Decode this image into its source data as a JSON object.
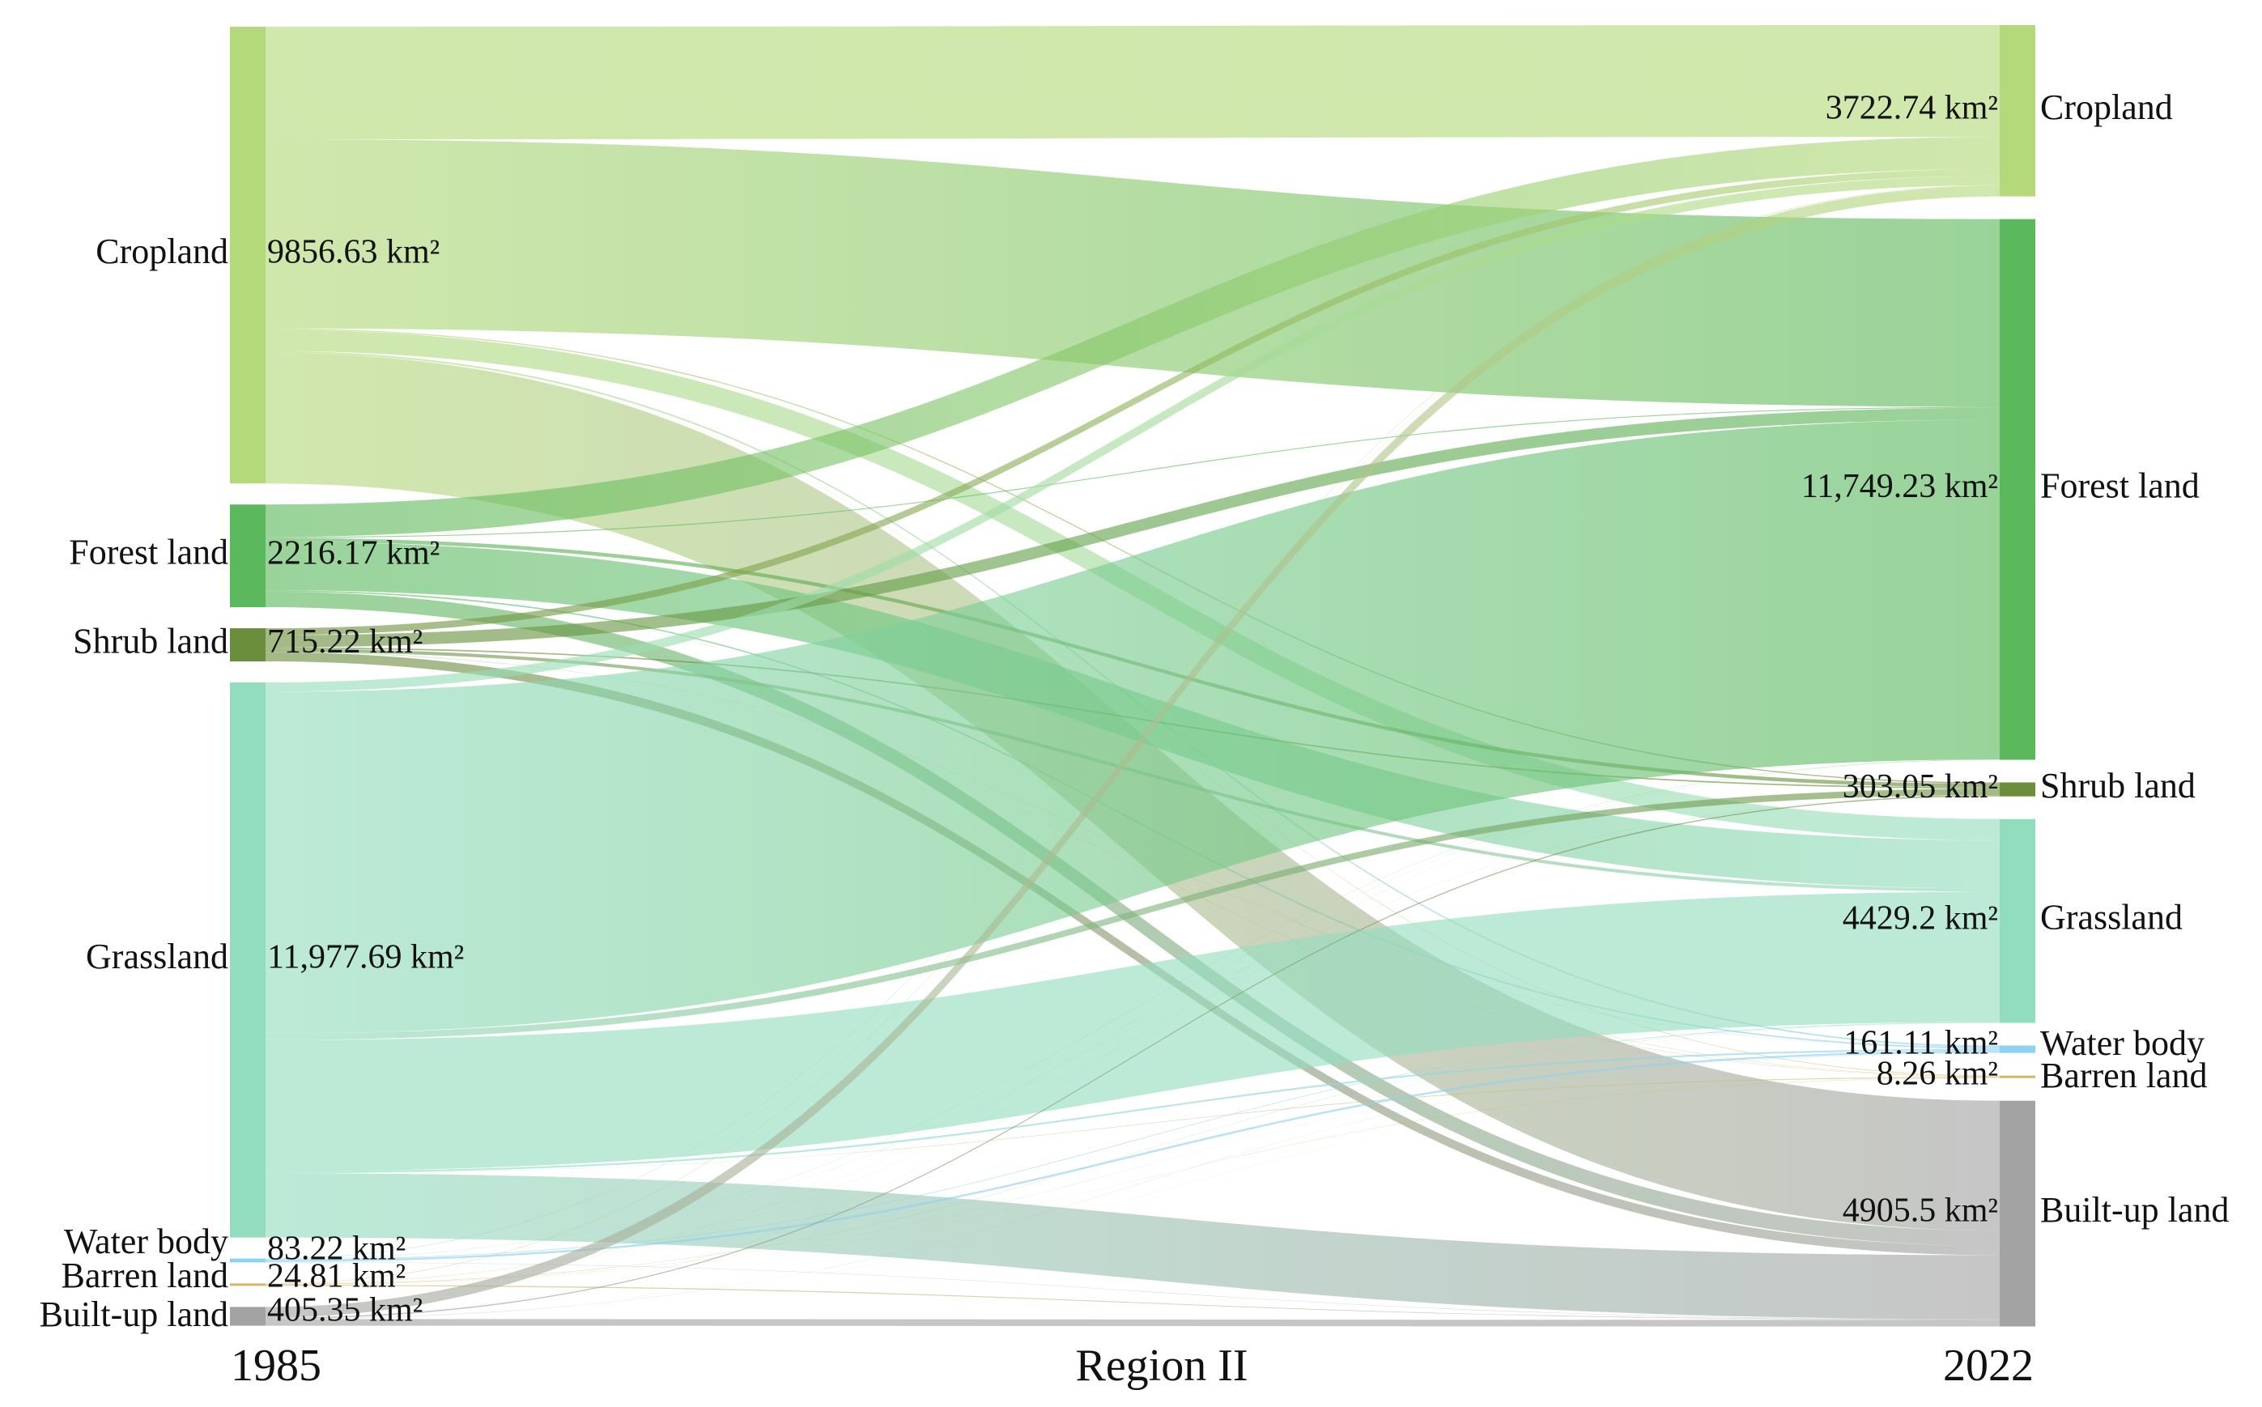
{
  "title": "Region II",
  "columns": {
    "left": "1985",
    "right": "2022"
  },
  "area_unit": "km²",
  "left_nodes": [
    {
      "id": "cropland",
      "name": "Cropland",
      "value_label": "9856.63 km²",
      "area": 9856.63,
      "color": "#b4d97a"
    },
    {
      "id": "forest",
      "name": "Forest land",
      "value_label": "2216.17 km²",
      "area": 2216.17,
      "color": "#5cb85c"
    },
    {
      "id": "shrub",
      "name": "Shrub land",
      "value_label": "715.22 km²",
      "area": 715.22,
      "color": "#6b8e3c"
    },
    {
      "id": "grass",
      "name": "Grassland",
      "value_label": "11,977.69 km²",
      "area": 11977.69,
      "color": "#93ddbf"
    },
    {
      "id": "water",
      "name": "Water body",
      "value_label": "83.22 km²",
      "area": 83.22,
      "color": "#8fd1f0"
    },
    {
      "id": "barren",
      "name": "Barren land",
      "value_label": "24.81 km²",
      "area": 24.81,
      "color": "#d4b663"
    },
    {
      "id": "built",
      "name": "Built-up land",
      "value_label": "405.35 km²",
      "area": 405.35,
      "color": "#a3a3a3"
    }
  ],
  "right_nodes": [
    {
      "id": "cropland",
      "name": "Cropland",
      "value_label": "3722.74 km²",
      "area": 3722.74,
      "color": "#b4d97a"
    },
    {
      "id": "forest",
      "name": "Forest land",
      "value_label": "11,749.23 km²",
      "area": 11749.23,
      "color": "#5cb85c"
    },
    {
      "id": "shrub",
      "name": "Shrub land",
      "value_label": "303.05 km²",
      "area": 303.05,
      "color": "#6b8e3c"
    },
    {
      "id": "grass",
      "name": "Grassland",
      "value_label": "4429.2 km²",
      "area": 4429.2,
      "color": "#93ddbf"
    },
    {
      "id": "water",
      "name": "Water body",
      "value_label": "161.11 km²",
      "area": 161.11,
      "color": "#8fd1f0"
    },
    {
      "id": "barren",
      "name": "Barren land",
      "value_label": "8.26 km²",
      "area": 8.26,
      "color": "#d4b663"
    },
    {
      "id": "built",
      "name": "Built-up land",
      "value_label": "4905.5 km²",
      "area": 4905.5,
      "color": "#a3a3a3"
    }
  ],
  "flows": [
    {
      "from": "cropland",
      "to": "cropland",
      "value": 2430
    },
    {
      "from": "cropland",
      "to": "forest",
      "value": 4080
    },
    {
      "from": "cropland",
      "to": "shrub",
      "value": 25
    },
    {
      "from": "cropland",
      "to": "grass",
      "value": 460
    },
    {
      "from": "cropland",
      "to": "water",
      "value": 35
    },
    {
      "from": "cropland",
      "to": "barren",
      "value": 2
    },
    {
      "from": "cropland",
      "to": "built",
      "value": 2824
    },
    {
      "from": "forest",
      "to": "cropland",
      "value": 700
    },
    {
      "from": "forest",
      "to": "forest",
      "value": 20
    },
    {
      "from": "forest",
      "to": "shrub",
      "value": 80
    },
    {
      "from": "forest",
      "to": "grass",
      "value": 1050
    },
    {
      "from": "forest",
      "to": "water",
      "value": 30
    },
    {
      "from": "forest",
      "to": "barren",
      "value": 1
    },
    {
      "from": "forest",
      "to": "built",
      "value": 335
    },
    {
      "from": "shrub",
      "to": "cropland",
      "value": 150
    },
    {
      "from": "shrub",
      "to": "forest",
      "value": 260
    },
    {
      "from": "shrub",
      "to": "shrub",
      "value": 30
    },
    {
      "from": "shrub",
      "to": "grass",
      "value": 70
    },
    {
      "from": "shrub",
      "to": "water",
      "value": 5
    },
    {
      "from": "shrub",
      "to": "barren",
      "value": 1
    },
    {
      "from": "shrub",
      "to": "built",
      "value": 199
    },
    {
      "from": "grass",
      "to": "cropland",
      "value": 200
    },
    {
      "from": "grass",
      "to": "forest",
      "value": 7380
    },
    {
      "from": "grass",
      "to": "shrub",
      "value": 140
    },
    {
      "from": "grass",
      "to": "grass",
      "value": 2830
    },
    {
      "from": "grass",
      "to": "water",
      "value": 40
    },
    {
      "from": "grass",
      "to": "barren",
      "value": 3
    },
    {
      "from": "grass",
      "to": "built",
      "value": 1388
    },
    {
      "from": "water",
      "to": "cropland",
      "value": 10
    },
    {
      "from": "water",
      "to": "forest",
      "value": 5
    },
    {
      "from": "water",
      "to": "shrub",
      "value": 2
    },
    {
      "from": "water",
      "to": "grass",
      "value": 14
    },
    {
      "from": "water",
      "to": "water",
      "value": 45
    },
    {
      "from": "water",
      "to": "built",
      "value": 7
    },
    {
      "from": "barren",
      "to": "cropland",
      "value": 4
    },
    {
      "from": "barren",
      "to": "forest",
      "value": 2
    },
    {
      "from": "barren",
      "to": "shrub",
      "value": 1
    },
    {
      "from": "barren",
      "to": "grass",
      "value": 4
    },
    {
      "from": "barren",
      "to": "water",
      "value": 2
    },
    {
      "from": "barren",
      "to": "barren",
      "value": 1
    },
    {
      "from": "barren",
      "to": "built",
      "value": 10.8
    },
    {
      "from": "built",
      "to": "cropland",
      "value": 230
    },
    {
      "from": "built",
      "to": "forest",
      "value": 2
    },
    {
      "from": "built",
      "to": "shrub",
      "value": 25
    },
    {
      "from": "built",
      "to": "grass",
      "value": 1
    },
    {
      "from": "built",
      "to": "water",
      "value": 4
    },
    {
      "from": "built",
      "to": "barren",
      "value": 0.3
    },
    {
      "from": "built",
      "to": "built",
      "value": 143
    }
  ]
}
